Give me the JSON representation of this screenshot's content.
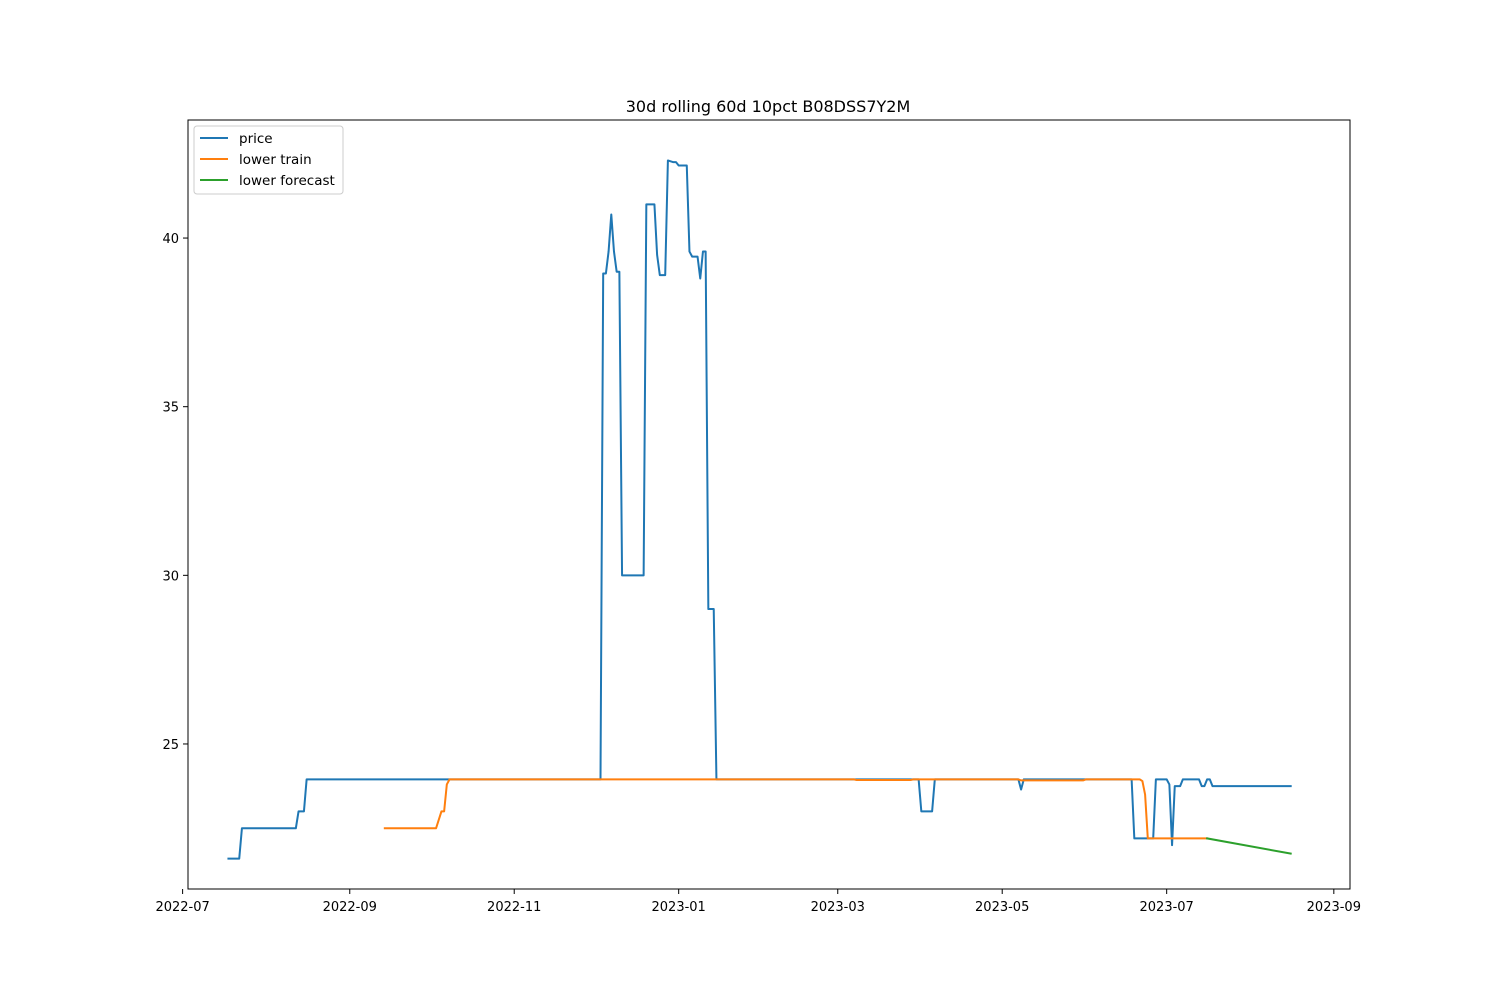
{
  "chart_data": {
    "type": "line",
    "title": "30d rolling 60d 10pct B08DSS7Y2M",
    "xlabel": "",
    "ylabel": "",
    "xlim": [
      "2022-07-03",
      "2023-09-07"
    ],
    "ylim": [
      20.7,
      43.5
    ],
    "x_ticks": [
      "2022-07",
      "2022-09",
      "2022-11",
      "2023-01",
      "2023-03",
      "2023-05",
      "2023-07",
      "2023-09"
    ],
    "y_ticks": [
      25,
      30,
      35,
      40
    ],
    "grid": false,
    "legend_position": "upper-left",
    "series": [
      {
        "name": "price",
        "color": "#1f77b4",
        "points": [
          [
            "2022-07-18",
            21.6
          ],
          [
            "2022-07-22",
            21.6
          ],
          [
            "2022-07-23",
            22.5
          ],
          [
            "2022-08-12",
            22.5
          ],
          [
            "2022-08-13",
            23.0
          ],
          [
            "2022-08-15",
            23.0
          ],
          [
            "2022-08-16",
            23.95
          ],
          [
            "2022-12-03",
            23.95
          ],
          [
            "2022-12-04",
            38.95
          ],
          [
            "2022-12-05",
            38.95
          ],
          [
            "2022-12-06",
            39.6
          ],
          [
            "2022-12-07",
            40.7
          ],
          [
            "2022-12-08",
            39.6
          ],
          [
            "2022-12-09",
            39.0
          ],
          [
            "2022-12-10",
            39.0
          ],
          [
            "2022-12-11",
            30.0
          ],
          [
            "2022-12-19",
            30.0
          ],
          [
            "2022-12-20",
            41.0
          ],
          [
            "2022-12-23",
            41.0
          ],
          [
            "2022-12-24",
            39.5
          ],
          [
            "2022-12-25",
            38.9
          ],
          [
            "2022-12-27",
            38.9
          ],
          [
            "2022-12-28",
            42.3
          ],
          [
            "2022-12-30",
            42.25
          ],
          [
            "2022-12-31",
            42.25
          ],
          [
            "2023-01-01",
            42.15
          ],
          [
            "2023-01-04",
            42.15
          ],
          [
            "2023-01-05",
            39.6
          ],
          [
            "2023-01-06",
            39.45
          ],
          [
            "2023-01-08",
            39.45
          ],
          [
            "2023-01-09",
            38.8
          ],
          [
            "2023-01-10",
            39.6
          ],
          [
            "2023-01-11",
            39.6
          ],
          [
            "2023-01-12",
            29.0
          ],
          [
            "2023-01-14",
            29.0
          ],
          [
            "2023-01-15",
            23.95
          ],
          [
            "2023-03-31",
            23.95
          ],
          [
            "2023-04-01",
            23.0
          ],
          [
            "2023-04-05",
            23.0
          ],
          [
            "2023-04-06",
            23.95
          ],
          [
            "2023-05-07",
            23.95
          ],
          [
            "2023-05-08",
            23.65
          ],
          [
            "2023-05-09",
            23.95
          ],
          [
            "2023-06-18",
            23.95
          ],
          [
            "2023-06-19",
            22.2
          ],
          [
            "2023-06-26",
            22.2
          ],
          [
            "2023-06-27",
            23.95
          ],
          [
            "2023-07-01",
            23.95
          ],
          [
            "2023-07-02",
            23.8
          ],
          [
            "2023-07-03",
            22.0
          ],
          [
            "2023-07-04",
            23.75
          ],
          [
            "2023-07-06",
            23.75
          ],
          [
            "2023-07-07",
            23.95
          ],
          [
            "2023-07-13",
            23.95
          ],
          [
            "2023-07-14",
            23.75
          ],
          [
            "2023-07-15",
            23.75
          ],
          [
            "2023-07-16",
            23.95
          ],
          [
            "2023-07-17",
            23.95
          ],
          [
            "2023-07-18",
            23.75
          ],
          [
            "2023-08-16",
            23.75
          ]
        ]
      },
      {
        "name": "lower train",
        "color": "#ff7f0e",
        "points": [
          [
            "2022-09-14",
            22.5
          ],
          [
            "2022-10-03",
            22.5
          ],
          [
            "2022-10-05",
            23.0
          ],
          [
            "2022-10-06",
            23.0
          ],
          [
            "2022-10-07",
            23.8
          ],
          [
            "2022-10-08",
            23.95
          ],
          [
            "2023-03-07",
            23.95
          ],
          [
            "2023-03-08",
            23.93
          ],
          [
            "2023-03-28",
            23.93
          ],
          [
            "2023-03-29",
            23.95
          ],
          [
            "2023-05-07",
            23.95
          ],
          [
            "2023-05-08",
            23.92
          ],
          [
            "2023-05-31",
            23.92
          ],
          [
            "2023-06-01",
            23.95
          ],
          [
            "2023-06-21",
            23.95
          ],
          [
            "2023-06-22",
            23.9
          ],
          [
            "2023-06-23",
            23.5
          ],
          [
            "2023-06-24",
            22.2
          ],
          [
            "2023-07-16",
            22.2
          ]
        ]
      },
      {
        "name": "lower forecast",
        "color": "#2ca02c",
        "points": [
          [
            "2023-07-16",
            22.2
          ],
          [
            "2023-08-16",
            21.75
          ]
        ]
      }
    ]
  }
}
